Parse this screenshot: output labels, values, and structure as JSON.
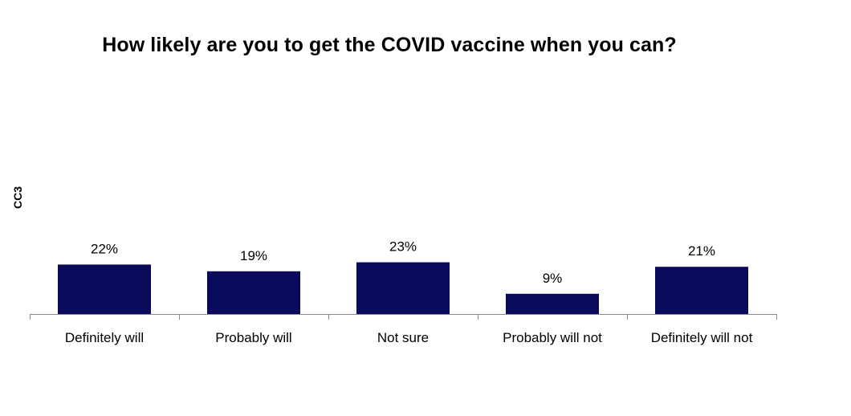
{
  "chart_data": {
    "type": "bar",
    "title": "How likely are you to get the COVID vaccine when you can?",
    "side_label": "CC3",
    "categories": [
      "Definitely will",
      "Probably will",
      "Not sure",
      "Probably will not",
      "Definitely will not"
    ],
    "values": [
      22,
      19,
      23,
      9,
      21
    ],
    "value_labels": [
      "22%",
      "19%",
      "23%",
      "9%",
      "21%"
    ],
    "unit": "%",
    "ylim": [
      0,
      100
    ],
    "grid": false,
    "legend": "none",
    "bar_color": "#0a0a5a",
    "axis_color": "#888888"
  }
}
